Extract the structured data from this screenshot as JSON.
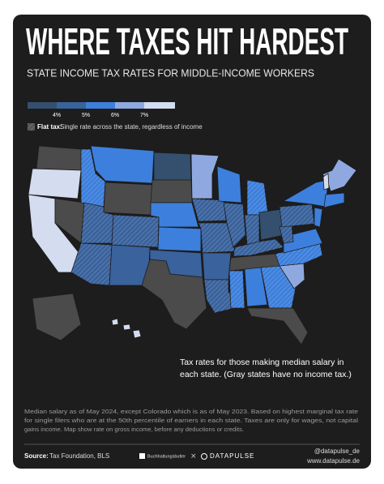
{
  "header": {
    "title": "WHERE TAXES HIT HARDEST",
    "subtitle": "STATE INCOME TAX RATES FOR MIDDLE-INCOME WORKERS"
  },
  "legend": {
    "labels": [
      "4%",
      "5%",
      "6%",
      "7%"
    ],
    "flat_tax_label": "Flat tax:",
    "flat_tax_text": "Single rate across the state, regardless of income"
  },
  "annotation": {
    "lines": [
      "Tax rates for those making median salary in",
      "each state. (Gray states have no income tax.)"
    ]
  },
  "footnote": {
    "lines": [
      "Median salary as of May 2024, except Colorado which is as of May 2023. Based on highest marginal tax rate",
      "for single filers who are at the 50th percentile of earners in each state. Taxes are only for wages, not capital",
      "gains income. Map show rate on gross income, before any deductions or credits."
    ]
  },
  "footer": {
    "source_label": "Source:",
    "source": "Tax Foundation, BLS",
    "partner": "Buchhaltungsbutler",
    "brand": "DATAPULSE",
    "handle": "@datapulse_de",
    "url": "www.datapulse.de"
  }
}
